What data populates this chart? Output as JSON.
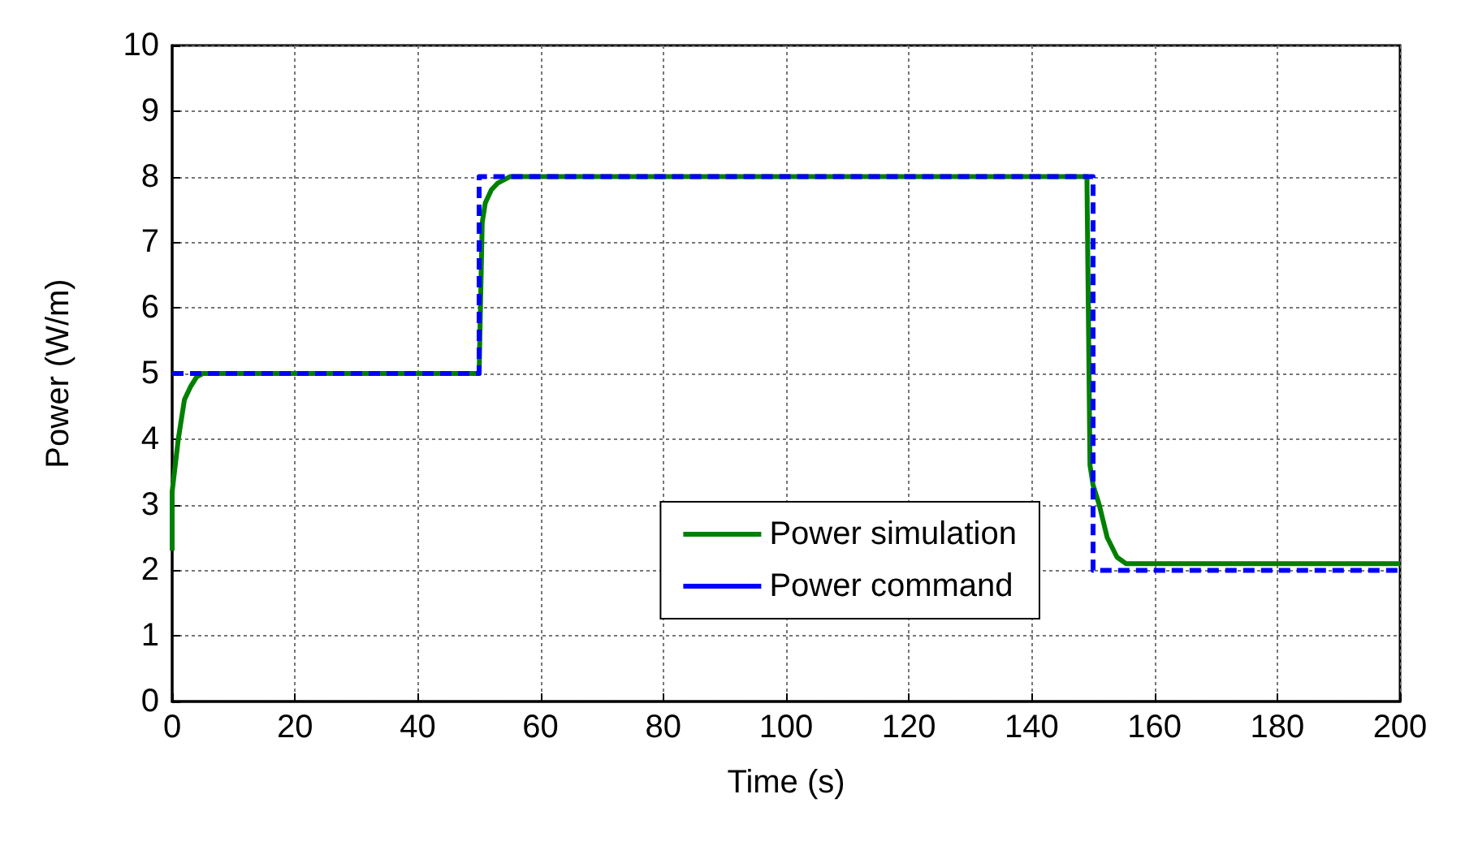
{
  "chart_data": {
    "type": "line",
    "xlabel": "Time (s)",
    "ylabel": "Power (W/m)",
    "xlim": [
      0,
      200
    ],
    "ylim": [
      0,
      10
    ],
    "xticks": [
      0,
      20,
      40,
      60,
      80,
      100,
      120,
      140,
      160,
      180,
      200
    ],
    "yticks": [
      0,
      1,
      2,
      3,
      4,
      5,
      6,
      7,
      8,
      9,
      10
    ],
    "grid": true,
    "legend": "bottom",
    "marker": "none",
    "series": [
      {
        "name": "Power simulation",
        "color": "#008000",
        "line_style": "solid",
        "x": [
          0,
          0,
          0.5,
          1,
          1.5,
          2,
          3,
          4,
          5,
          50,
          50.5,
          51,
          52,
          53,
          55,
          149,
          149.5,
          150,
          151,
          152.3,
          153.9,
          155.4,
          200
        ],
        "values": [
          2.3,
          3.2,
          3.6,
          4.0,
          4.3,
          4.6,
          4.8,
          4.95,
          5,
          5,
          7.3,
          7.6,
          7.8,
          7.9,
          8,
          8,
          3.6,
          3.3,
          3.0,
          2.5,
          2.2,
          2.1,
          2.1
        ]
      },
      {
        "name": "Power command",
        "color": "#0000ff",
        "line_style": "dashed",
        "x": [
          0,
          50,
          50,
          150,
          150,
          200
        ],
        "values": [
          5,
          5,
          8,
          8,
          2,
          2
        ]
      }
    ]
  }
}
